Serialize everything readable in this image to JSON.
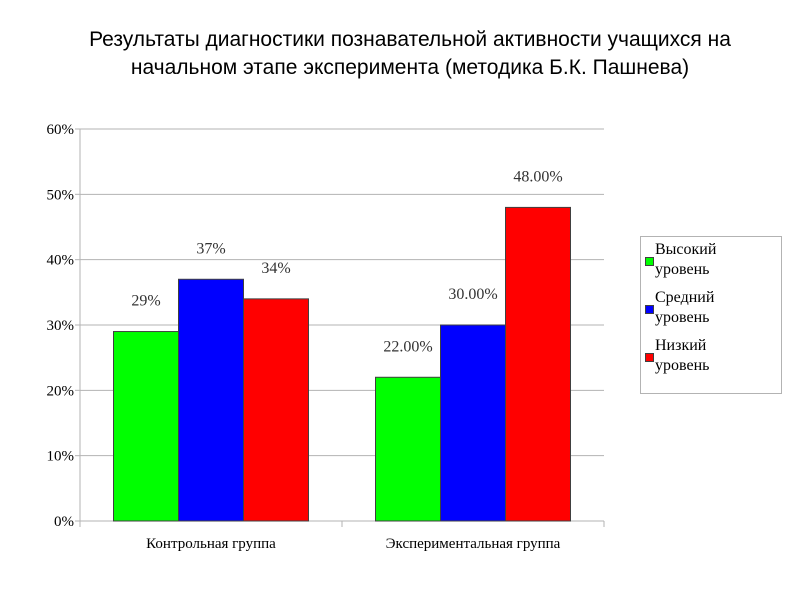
{
  "title_lines": [
    "Результаты диагностики познавательной активности учащихся на",
    "начальном этапе эксперимента (методика Б.К. Пашнева)"
  ],
  "chart_data": {
    "type": "bar",
    "title": "Результаты диагностики познавательной активности учащихся на начальном этапе эксперимента (методика Б.К. Пашнева)",
    "xlabel": "",
    "ylabel": "",
    "ylim": [
      0,
      60
    ],
    "y_ticks": [
      "0%",
      "10%",
      "20%",
      "30%",
      "40%",
      "50%",
      "60%"
    ],
    "grid": true,
    "legend_position": "right",
    "categories": [
      "Контрольная группа",
      "Экспериментальная группа"
    ],
    "series": [
      {
        "name": "Высокий уровень",
        "color": "#00ff00",
        "values": [
          29,
          22
        ],
        "labels": [
          "29%",
          "22.00%"
        ]
      },
      {
        "name": "Средний уровень",
        "color": "#0000ff",
        "values": [
          37,
          30
        ],
        "labels": [
          "37%",
          "30.00%"
        ]
      },
      {
        "name": "Низкий уровень",
        "color": "#ff0000",
        "values": [
          34,
          48
        ],
        "labels": [
          "34%",
          "48.00%"
        ]
      }
    ],
    "legend_lines": [
      [
        "Высокий",
        "уровень"
      ],
      [
        "Средний",
        "уровень"
      ],
      [
        "Низкий",
        "уровень"
      ]
    ]
  }
}
